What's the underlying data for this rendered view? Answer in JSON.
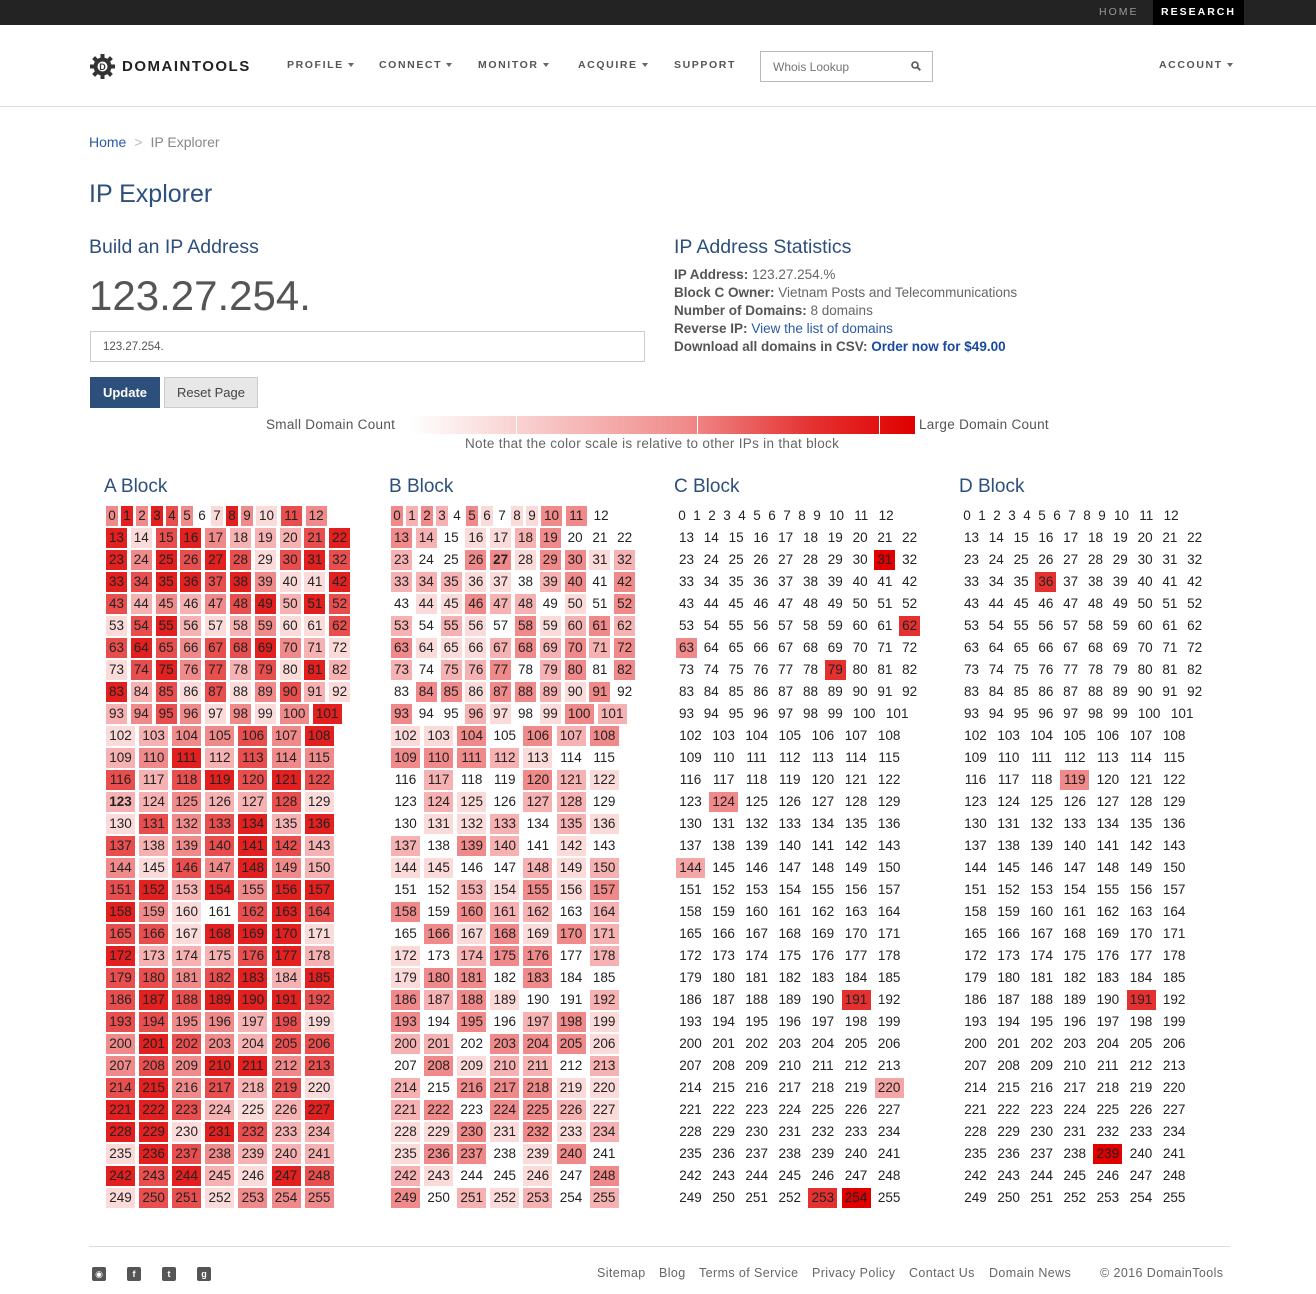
{
  "topbar": {
    "home": "HOME",
    "research": "RESEARCH"
  },
  "header": {
    "logo": "DOMAINTOOLS",
    "nav": [
      "PROFILE",
      "CONNECT",
      "MONITOR",
      "ACQUIRE",
      "SUPPORT"
    ],
    "search_placeholder": "Whois Lookup",
    "account": "ACCOUNT"
  },
  "breadcrumb": {
    "home": "Home",
    "sep": ">",
    "current": "IP Explorer"
  },
  "page_title": "IP Explorer",
  "builder": {
    "title": "Build an IP Address",
    "ip": "123.27.254.",
    "input_value": "123.27.254.",
    "update": "Update",
    "reset": "Reset Page"
  },
  "stats": {
    "title": "IP Address Statistics",
    "ip_label": "IP Address:",
    "ip_value": "123.27.254.%",
    "owner_label": "Block C Owner:",
    "owner_value": "Vietnam Posts and Telecommunications",
    "domains_label": "Number of Domains:",
    "domains_value": "8 domains",
    "reverse_label": "Reverse IP:",
    "reverse_link": "View the list of domains",
    "csv_label": "Download all domains in CSV:",
    "csv_link": "Order now for $49.00"
  },
  "scale": {
    "small": "Small Domain Count",
    "large": "Large Domain Count",
    "note": "Note that the color scale is relative to other IPs in that block"
  },
  "blocks": [
    {
      "title": "A Block",
      "seed": 5,
      "bias": 1.3,
      "bold": [
        123
      ]
    },
    {
      "title": "B Block",
      "seed": 13,
      "bias": 0.85,
      "bold": [
        27
      ]
    },
    {
      "title": "C Block",
      "seed": 0,
      "bias": 0,
      "highlights": {
        "31": "#e00000",
        "62": "#e53030",
        "63": "#f08a8a",
        "79": "#e53030",
        "124": "#f08a8a",
        "144": "#f4a5a5",
        "191": "#e53030",
        "220": "#f4a5a5",
        "253": "#e53030",
        "254": "#e00000"
      }
    },
    {
      "title": "D Block",
      "seed": 0,
      "bias": 0,
      "highlights": {
        "36": "#e53030",
        "119": "#f08a8a",
        "191": "#e53030",
        "239": "#e00000"
      }
    }
  ],
  "colors": {
    "level1": "#fbdada",
    "level2": "#f6b2b2",
    "level3": "#f08a8a",
    "level4": "#e94e4e",
    "level5": "#e22020",
    "accent": "#2d4f7c"
  },
  "footer": {
    "links": [
      "Sitemap",
      "Blog",
      "Terms of Service",
      "Privacy Policy",
      "Contact Us",
      "Domain News"
    ],
    "copyright": "© 2016 DomainTools"
  }
}
